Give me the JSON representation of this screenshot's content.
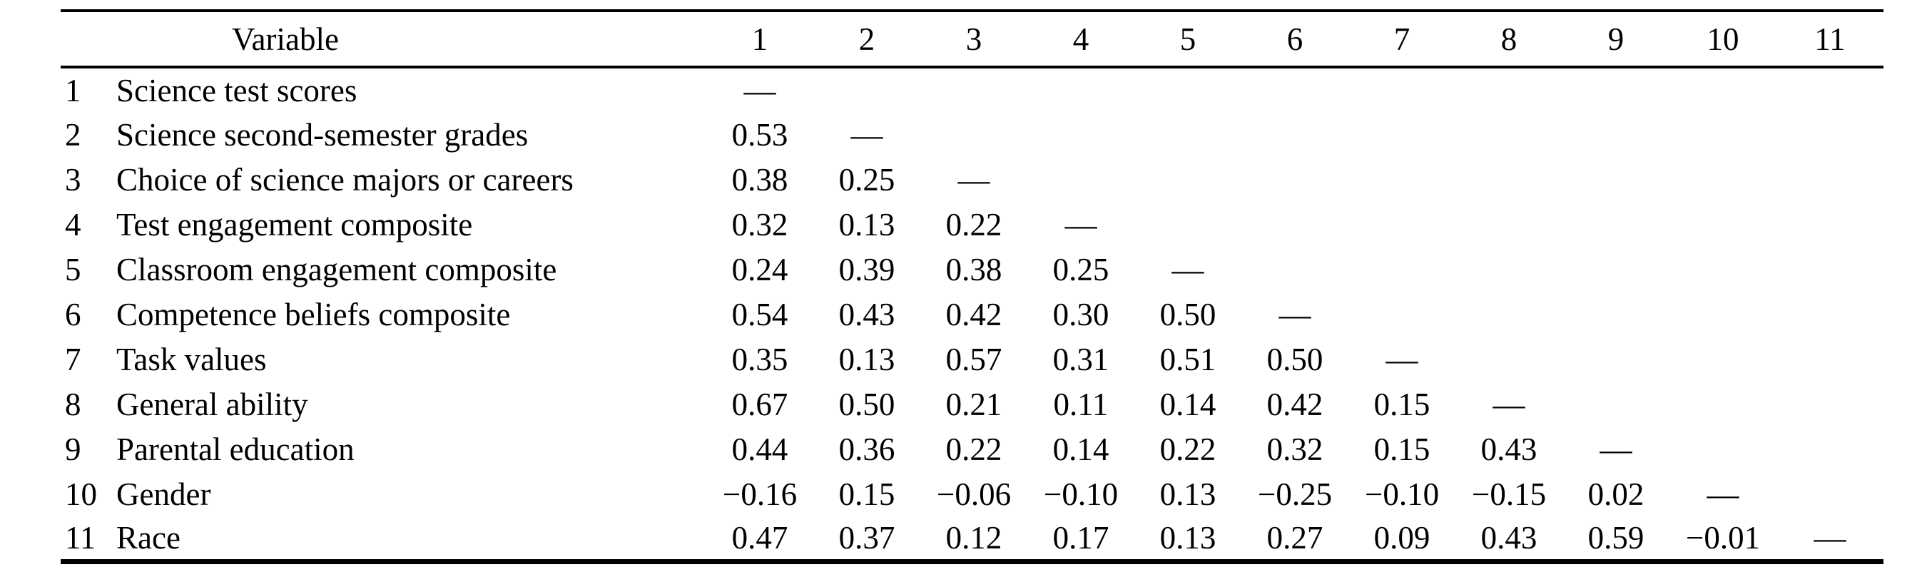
{
  "table": {
    "header": {
      "variable_label": "Variable",
      "columns": [
        "1",
        "2",
        "3",
        "4",
        "5",
        "6",
        "7",
        "8",
        "9",
        "10",
        "11"
      ]
    },
    "rows": [
      {
        "num": "1",
        "name": "Science test scores",
        "values": [
          "—"
        ]
      },
      {
        "num": "2",
        "name": "Science second-semester grades",
        "values": [
          "0.53",
          "—"
        ]
      },
      {
        "num": "3",
        "name": "Choice of science majors or careers",
        "values": [
          "0.38",
          "0.25",
          "—"
        ]
      },
      {
        "num": "4",
        "name": "Test engagement composite",
        "values": [
          "0.32",
          "0.13",
          "0.22",
          "—"
        ]
      },
      {
        "num": "5",
        "name": "Classroom engagement composite",
        "values": [
          "0.24",
          "0.39",
          "0.38",
          "0.25",
          "—"
        ]
      },
      {
        "num": "6",
        "name": "Competence beliefs composite",
        "values": [
          "0.54",
          "0.43",
          "0.42",
          "0.30",
          "0.50",
          "—"
        ]
      },
      {
        "num": "7",
        "name": "Task values",
        "values": [
          "0.35",
          "0.13",
          "0.57",
          "0.31",
          "0.51",
          "0.50",
          "—"
        ]
      },
      {
        "num": "8",
        "name": "General ability",
        "values": [
          "0.67",
          "0.50",
          "0.21",
          "0.11",
          "0.14",
          "0.42",
          "0.15",
          "—"
        ]
      },
      {
        "num": "9",
        "name": "Parental education",
        "values": [
          "0.44",
          "0.36",
          "0.22",
          "0.14",
          "0.22",
          "0.32",
          "0.15",
          "0.43",
          "—"
        ]
      },
      {
        "num": "10",
        "name": "Gender",
        "values": [
          "−0.16",
          "0.15",
          "−0.06",
          "−0.10",
          "0.13",
          "−0.25",
          "−0.10",
          "−0.15",
          "0.02",
          "—"
        ]
      },
      {
        "num": "11",
        "name": "Race",
        "values": [
          "0.47",
          "0.37",
          "0.12",
          "0.17",
          "0.13",
          "0.27",
          "0.09",
          "0.43",
          "0.59",
          "−0.01",
          "—"
        ]
      }
    ]
  },
  "colors": {
    "text": "#000000",
    "rule": "#000000",
    "background": "#ffffff"
  }
}
